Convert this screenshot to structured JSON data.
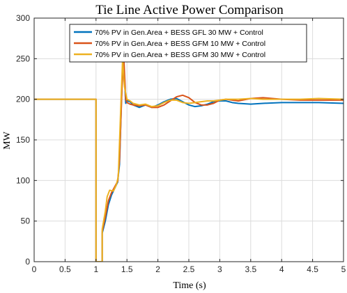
{
  "chart_data": {
    "type": "line",
    "title": "Tie Line Active Power Comparison",
    "xlabel": "Time (s)",
    "ylabel": "MW",
    "xlim": [
      0,
      5
    ],
    "ylim": [
      0,
      300
    ],
    "xticks": [
      0,
      0.5,
      1,
      1.5,
      2,
      2.5,
      3,
      3.5,
      4,
      4.5,
      5
    ],
    "xtick_labels": [
      "0",
      "0.5",
      "1",
      "1.5",
      "2",
      "2.5",
      "3",
      "3.5",
      "4",
      "4.5",
      "5"
    ],
    "yticks": [
      0,
      50,
      100,
      150,
      200,
      250,
      300
    ],
    "ytick_labels": [
      "0",
      "50",
      "100",
      "150",
      "200",
      "250",
      "300"
    ],
    "grid": true,
    "legend_position": "top-right",
    "series": [
      {
        "name": "70% PV in Gen.Area + BESS GFL 30 MW + Control",
        "color": "#0072BD",
        "x": [
          0,
          1.0,
          1.0,
          1.1,
          1.1,
          1.15,
          1.2,
          1.25,
          1.3,
          1.35,
          1.38,
          1.42,
          1.44,
          1.46,
          1.48,
          1.5,
          1.55,
          1.6,
          1.7,
          1.8,
          1.9,
          2.0,
          2.1,
          2.2,
          2.3,
          2.4,
          2.5,
          2.6,
          2.7,
          2.8,
          2.9,
          3.0,
          3.1,
          3.2,
          3.3,
          3.5,
          3.7,
          4.0,
          4.3,
          4.6,
          5.0
        ],
        "y": [
          200,
          200,
          0,
          0,
          35,
          50,
          70,
          82,
          90,
          98,
          120,
          220,
          258,
          225,
          195,
          198,
          197,
          193,
          190,
          193,
          190,
          193,
          197,
          200,
          201,
          197,
          193,
          191,
          192,
          194,
          197,
          198,
          198,
          196,
          195,
          194,
          195,
          196,
          196,
          196,
          195
        ]
      },
      {
        "name": "70% PV in Gen.Area + BESS GFM 10 MW + Control",
        "color": "#D95319",
        "x": [
          0,
          1.0,
          1.0,
          1.1,
          1.1,
          1.15,
          1.2,
          1.25,
          1.3,
          1.35,
          1.38,
          1.42,
          1.45,
          1.48,
          1.5,
          1.55,
          1.6,
          1.7,
          1.8,
          1.9,
          2.0,
          2.1,
          2.2,
          2.3,
          2.4,
          2.5,
          2.6,
          2.7,
          2.8,
          2.9,
          3.0,
          3.1,
          3.2,
          3.3,
          3.5,
          3.7,
          4.0,
          4.3,
          4.6,
          5.0
        ],
        "y": [
          200,
          200,
          0,
          0,
          37,
          55,
          75,
          85,
          92,
          99,
          125,
          215,
          250,
          200,
          196,
          194,
          193,
          192,
          193,
          190,
          190,
          193,
          198,
          203,
          205,
          202,
          196,
          193,
          193,
          195,
          199,
          200,
          199,
          198,
          201,
          202,
          200,
          199,
          199,
          199
        ]
      },
      {
        "name": "70% PV in Gen.Area + BESS GFM 30 MW + Control",
        "color": "#EDB120",
        "x": [
          0,
          1.0,
          1.0,
          1.1,
          1.1,
          1.15,
          1.18,
          1.22,
          1.28,
          1.3,
          1.33,
          1.36,
          1.4,
          1.43,
          1.46,
          1.5,
          1.55,
          1.6,
          1.7,
          1.8,
          1.9,
          2.0,
          2.1,
          2.2,
          2.3,
          2.4,
          2.5,
          2.6,
          2.7,
          2.8,
          2.9,
          3.0,
          3.1,
          3.2,
          3.3,
          3.5,
          3.7,
          4.0,
          4.3,
          4.6,
          5.0
        ],
        "y": [
          200,
          200,
          0,
          0,
          40,
          62,
          80,
          88,
          87,
          90,
          95,
          105,
          190,
          250,
          215,
          200,
          198,
          195,
          193,
          194,
          191,
          192,
          196,
          199,
          199,
          196,
          195,
          196,
          197,
          198,
          198,
          199,
          200,
          200,
          200,
          201,
          200,
          200,
          200,
          201,
          200
        ]
      }
    ]
  }
}
